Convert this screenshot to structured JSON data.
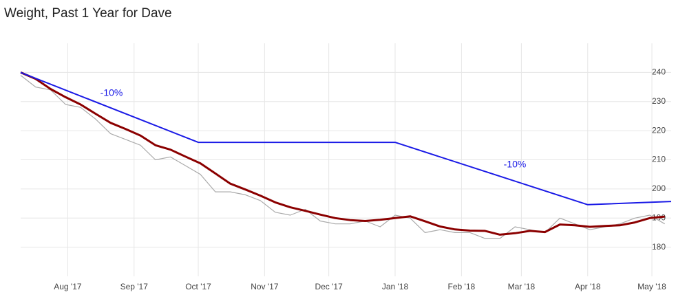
{
  "chart_data": {
    "type": "line",
    "title": "Weight, Past 1 Year for Dave",
    "xlim": [
      "2017-07-10",
      "2018-05-10"
    ],
    "xticks": [
      {
        "value": "2017-08-01",
        "label": "Aug '17"
      },
      {
        "value": "2017-09-01",
        "label": "Sep '17"
      },
      {
        "value": "2017-10-01",
        "label": "Oct '17"
      },
      {
        "value": "2017-11-01",
        "label": "Nov '17"
      },
      {
        "value": "2017-12-01",
        "label": "Dec '17"
      },
      {
        "value": "2018-01-01",
        "label": "Jan '18"
      },
      {
        "value": "2018-02-01",
        "label": "Feb '18"
      },
      {
        "value": "2018-03-01",
        "label": "Mar '18"
      },
      {
        "value": "2018-04-01",
        "label": "Apr '18"
      },
      {
        "value": "2018-05-01",
        "label": "May '18"
      }
    ],
    "ylim": [
      170,
      250
    ],
    "yticks": [
      180,
      190,
      200,
      210,
      220,
      230,
      240
    ],
    "grid": true,
    "annotations": [
      "-10%",
      "-10%"
    ],
    "series": [
      {
        "color": "#aaaaaa",
        "x": [
          "2017-07-10",
          "2017-07-17",
          "2017-07-24",
          "2017-07-31",
          "2017-08-07",
          "2017-08-14",
          "2017-08-21",
          "2017-08-28",
          "2017-09-04",
          "2017-09-11",
          "2017-09-18",
          "2017-09-25",
          "2017-10-02",
          "2017-10-09",
          "2017-10-16",
          "2017-10-23",
          "2017-10-30",
          "2017-11-06",
          "2017-11-13",
          "2017-11-20",
          "2017-11-27",
          "2017-12-04",
          "2017-12-11",
          "2017-12-18",
          "2017-12-25",
          "2018-01-01",
          "2018-01-08",
          "2018-01-15",
          "2018-01-22",
          "2018-01-29",
          "2018-02-05",
          "2018-02-12",
          "2018-02-19",
          "2018-02-26",
          "2018-03-05",
          "2018-03-12",
          "2018-03-19",
          "2018-03-26",
          "2018-04-02",
          "2018-04-09",
          "2018-04-16",
          "2018-04-23",
          "2018-04-30",
          "2018-05-07"
        ],
        "values": [
          239,
          235,
          234,
          229,
          228,
          224,
          219,
          217,
          215,
          210,
          211,
          208,
          205,
          199,
          199,
          198,
          196,
          192,
          191,
          193,
          189,
          188,
          188,
          189,
          187,
          191,
          190,
          185,
          186,
          185,
          185,
          183,
          183,
          187,
          186,
          185,
          190,
          188,
          186,
          187,
          188,
          190,
          191,
          188
        ]
      },
      {
        "color": "#8b0000",
        "x": [
          "2017-07-10",
          "2017-07-17",
          "2017-07-24",
          "2017-07-31",
          "2017-08-07",
          "2017-08-14",
          "2017-08-21",
          "2017-08-28",
          "2017-09-04",
          "2017-09-11",
          "2017-09-18",
          "2017-09-25",
          "2017-10-02",
          "2017-10-09",
          "2017-10-16",
          "2017-10-23",
          "2017-10-30",
          "2017-11-06",
          "2017-11-13",
          "2017-11-20",
          "2017-11-27",
          "2017-12-04",
          "2017-12-11",
          "2017-12-18",
          "2017-12-25",
          "2018-01-01",
          "2018-01-08",
          "2018-01-15",
          "2018-01-22",
          "2018-01-29",
          "2018-02-05",
          "2018-02-12",
          "2018-02-19",
          "2018-02-26",
          "2018-03-05",
          "2018-03-12",
          "2018-03-19",
          "2018-03-26",
          "2018-04-02",
          "2018-04-09",
          "2018-04-16",
          "2018-04-23",
          "2018-04-30",
          "2018-05-07"
        ],
        "values": [
          240,
          237.8,
          234.3,
          231.5,
          229,
          225.8,
          222.7,
          220.6,
          218.3,
          215,
          213.5,
          211.1,
          208.8,
          205.3,
          201.8,
          199.8,
          197.7,
          195.4,
          193.7,
          192.5,
          191.2,
          190,
          189.3,
          189,
          189.4,
          190,
          190.6,
          188.9,
          187.1,
          186.1,
          185.7,
          185.6,
          184.3,
          184.8,
          185.6,
          185.2,
          187.8,
          187.5,
          187,
          187.3,
          187.5,
          188.5,
          190,
          190.5
        ]
      },
      {
        "color": "#1a1ae6",
        "x": [
          "2017-07-10",
          "2017-10-01",
          "2018-01-01",
          "2018-04-01",
          "2018-05-10"
        ],
        "values": [
          240,
          216,
          216,
          194.6,
          195.7
        ]
      }
    ]
  }
}
